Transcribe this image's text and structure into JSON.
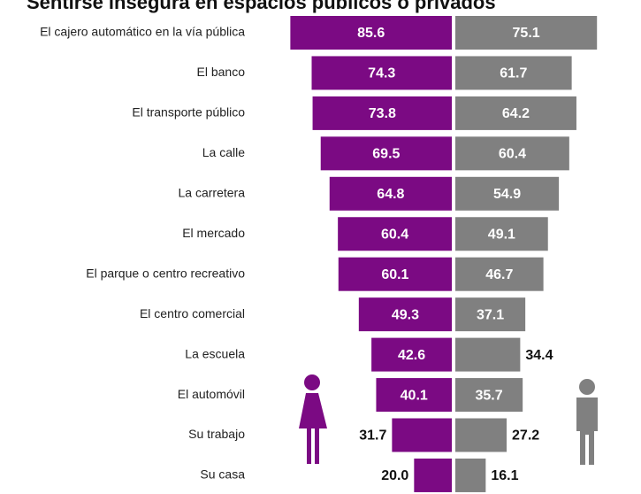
{
  "chart_data": {
    "type": "butterfly-bar",
    "title": "Sentirse insegura en espacios públicos o privados",
    "categories": [
      "El cajero automático en la vía pública",
      "El banco",
      "El transporte público",
      "La calle",
      "La carretera",
      "El mercado",
      "El parque o centro recreativo",
      "El centro comercial",
      "La escuela",
      "El automóvil",
      "Su trabajo",
      "Su casa"
    ],
    "series": [
      {
        "color": "#7b0a83",
        "side": "left",
        "values": [
          85.6,
          74.3,
          73.8,
          69.5,
          64.8,
          60.4,
          60.1,
          49.3,
          42.6,
          40.1,
          31.7,
          20.0
        ],
        "value_labels": [
          "85.6",
          "74.3",
          "73.8",
          "69.5",
          "64.8",
          "60.4",
          "60.1",
          "49.3",
          "42.6",
          "40.1",
          "31.7",
          "20.0"
        ]
      },
      {
        "color": "#808080",
        "side": "right",
        "values": [
          75.1,
          61.7,
          64.2,
          60.4,
          54.9,
          49.1,
          46.7,
          37.1,
          34.4,
          35.7,
          27.2,
          16.1
        ],
        "value_labels": [
          "75.1",
          "61.7",
          "64.2",
          "60.4",
          "54.9",
          "49.1",
          "46.7",
          "37.1",
          "34.4",
          "35.7",
          "27.2",
          "16.1"
        ]
      }
    ],
    "xlim": [
      0,
      90
    ]
  }
}
